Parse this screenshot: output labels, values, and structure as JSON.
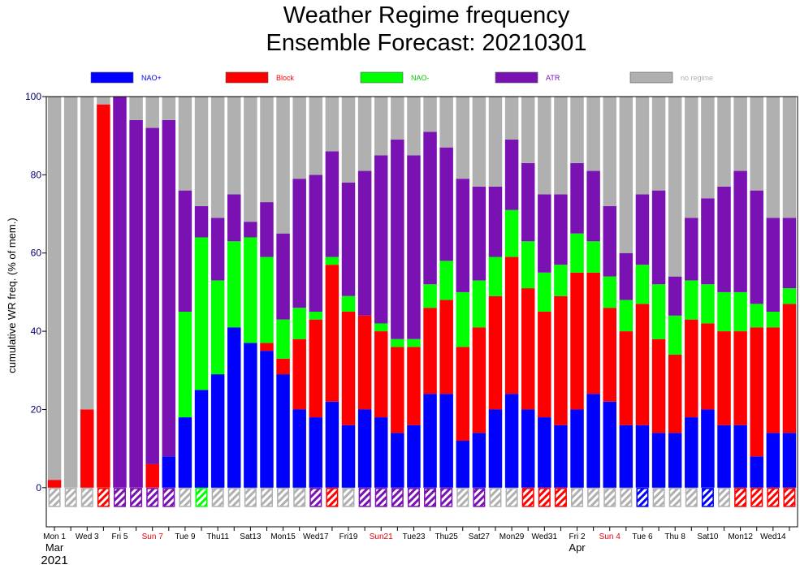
{
  "chart_data": {
    "type": "bar",
    "stacked": true,
    "title": "Weather Regime frequency",
    "subtitle": "Ensemble Forecast: 20210301",
    "ylabel": "cumulative WR freq. (% of mem.)",
    "xlabel": "",
    "ylim": [
      -10,
      100
    ],
    "yticks": [
      0,
      20,
      40,
      60,
      80,
      100
    ],
    "grid": false,
    "legend_position": "top",
    "colors": {
      "NAO+": "#0000ff",
      "Block": "#ff0000",
      "NAO-": "#00ff00",
      "ATR": "#7a12b3",
      "no regime": "#b0b0b0"
    },
    "legend_text_colors": {
      "NAO+": "#0000ff",
      "Block": "#ff0000",
      "NAO-": "#00cc00",
      "ATR": "#7a12b3",
      "no regime": "#b0b0b0"
    },
    "dates": [
      "2021-03-01",
      "2021-03-02",
      "2021-03-03",
      "2021-03-04",
      "2021-03-05",
      "2021-03-06",
      "2021-03-07",
      "2021-03-08",
      "2021-03-09",
      "2021-03-10",
      "2021-03-11",
      "2021-03-12",
      "2021-03-13",
      "2021-03-14",
      "2021-03-15",
      "2021-03-16",
      "2021-03-17",
      "2021-03-18",
      "2021-03-19",
      "2021-03-20",
      "2021-03-21",
      "2021-03-22",
      "2021-03-23",
      "2021-03-24",
      "2021-03-25",
      "2021-03-26",
      "2021-03-27",
      "2021-03-28",
      "2021-03-29",
      "2021-03-30",
      "2021-03-31",
      "2021-04-01",
      "2021-04-02",
      "2021-04-03",
      "2021-04-04",
      "2021-04-05",
      "2021-04-06",
      "2021-04-07",
      "2021-04-08",
      "2021-04-09",
      "2021-04-10",
      "2021-04-11",
      "2021-04-12",
      "2021-04-13",
      "2021-04-14",
      "2021-04-15"
    ],
    "x_tick_labels": [
      {
        "text": "Mon 1",
        "sunday": false
      },
      {
        "text": "Wed 3",
        "sunday": false
      },
      {
        "text": "Fri 5",
        "sunday": false
      },
      {
        "text": "Sun 7",
        "sunday": true
      },
      {
        "text": "Tue 9",
        "sunday": false
      },
      {
        "text": "Thu11",
        "sunday": false
      },
      {
        "text": "Sat13",
        "sunday": false
      },
      {
        "text": "Mon15",
        "sunday": false
      },
      {
        "text": "Wed17",
        "sunday": false
      },
      {
        "text": "Fri19",
        "sunday": false
      },
      {
        "text": "Sun21",
        "sunday": true
      },
      {
        "text": "Tue23",
        "sunday": false
      },
      {
        "text": "Thu25",
        "sunday": false
      },
      {
        "text": "Sat27",
        "sunday": false
      },
      {
        "text": "Mon29",
        "sunday": false
      },
      {
        "text": "Wed31",
        "sunday": false
      },
      {
        "text": "Fri 2",
        "sunday": false
      },
      {
        "text": "Sun 4",
        "sunday": true
      },
      {
        "text": "Tue 6",
        "sunday": false
      },
      {
        "text": "Thu 8",
        "sunday": false
      },
      {
        "text": "Sat10",
        "sunday": false
      },
      {
        "text": "Mon12",
        "sunday": false
      },
      {
        "text": "Wed14",
        "sunday": false
      }
    ],
    "month_labels": [
      {
        "text": "Mar",
        "date": "2021-03-01"
      },
      {
        "text": "Apr",
        "date": "2021-04-02"
      }
    ],
    "year_label": "2021",
    "series": [
      {
        "name": "NAO+",
        "values": [
          0,
          0,
          0,
          0,
          0,
          0,
          0,
          8,
          18,
          25,
          29,
          41,
          37,
          35,
          29,
          20,
          18,
          22,
          16,
          20,
          18,
          14,
          16,
          24,
          24,
          12,
          14,
          20,
          24,
          20,
          18,
          16,
          20,
          24,
          22,
          16,
          16,
          14,
          14,
          18,
          20,
          16,
          16,
          8,
          14,
          14
        ]
      },
      {
        "name": "Block",
        "values": [
          2,
          0,
          20,
          98,
          0,
          0,
          6,
          0,
          0,
          0,
          0,
          0,
          0,
          2,
          4,
          18,
          25,
          35,
          29,
          24,
          22,
          22,
          20,
          22,
          24,
          24,
          27,
          29,
          35,
          31,
          27,
          33,
          35,
          31,
          24,
          24,
          31,
          24,
          20,
          25,
          22,
          24,
          24,
          33,
          27,
          33
        ]
      },
      {
        "name": "NAO-",
        "values": [
          0,
          0,
          0,
          0,
          0,
          0,
          0,
          0,
          27,
          39,
          24,
          22,
          27,
          22,
          10,
          8,
          2,
          2,
          4,
          0,
          2,
          2,
          2,
          6,
          10,
          14,
          12,
          10,
          12,
          12,
          10,
          8,
          10,
          8,
          8,
          8,
          10,
          14,
          10,
          10,
          10,
          10,
          10,
          6,
          4,
          4
        ]
      },
      {
        "name": "ATR",
        "values": [
          0,
          0,
          0,
          0,
          100,
          94,
          86,
          86,
          31,
          8,
          16,
          12,
          4,
          14,
          22,
          33,
          35,
          27,
          29,
          37,
          43,
          51,
          47,
          39,
          29,
          29,
          24,
          18,
          18,
          20,
          20,
          18,
          18,
          18,
          18,
          12,
          18,
          24,
          10,
          16,
          22,
          27,
          31,
          29,
          24,
          18
        ]
      },
      {
        "name": "no regime",
        "values": [
          98,
          100,
          80,
          2,
          0,
          6,
          8,
          6,
          24,
          28,
          31,
          25,
          32,
          27,
          35,
          21,
          20,
          14,
          22,
          19,
          15,
          11,
          15,
          9,
          13,
          21,
          23,
          23,
          11,
          17,
          25,
          25,
          17,
          19,
          28,
          40,
          25,
          24,
          46,
          31,
          26,
          23,
          19,
          24,
          31,
          31
        ]
      }
    ],
    "observed_regime": [
      "no regime",
      "no regime",
      "no regime",
      "Block",
      "ATR",
      "ATR",
      "ATR",
      "ATR",
      "no regime",
      "NAO-",
      "no regime",
      "no regime",
      "no regime",
      "no regime",
      "no regime",
      "no regime",
      "ATR",
      "Block",
      "no regime",
      "ATR",
      "ATR",
      "ATR",
      "ATR",
      "ATR",
      "ATR",
      "no regime",
      "ATR",
      "no regime",
      "no regime",
      "Block",
      "Block",
      "Block",
      "no regime",
      "no regime",
      "no regime",
      "no regime",
      "NAO+",
      "no regime",
      "no regime",
      "no regime",
      "NAO+",
      "no regime",
      "Block",
      "Block",
      "Block",
      "Block"
    ]
  }
}
